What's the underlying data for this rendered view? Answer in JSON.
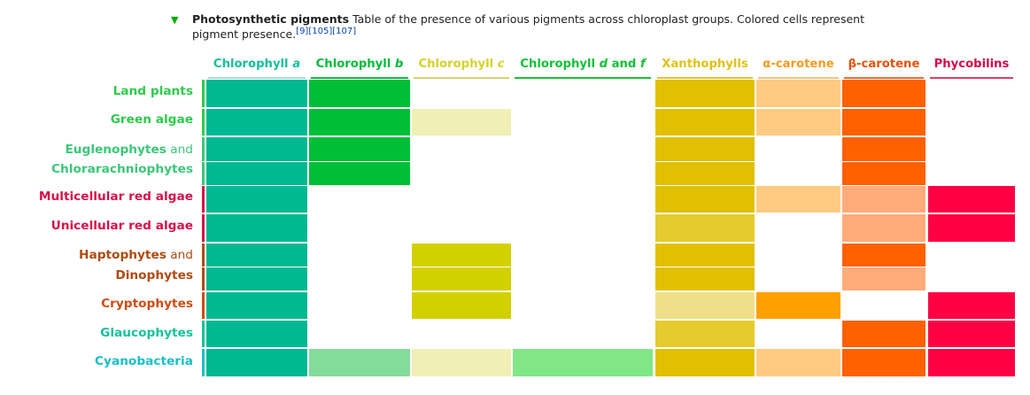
{
  "caption": {
    "toggle_icon": "triangle-down-icon",
    "title": "Photosynthetic pigments",
    "text_line1": "Table of the presence of various pigments across chloroplast groups. Colored cells represent",
    "text_line2": "pigment presence.",
    "refs": "[9][105][107]"
  },
  "columns": [
    {
      "id": "chla",
      "label": "Chlorophyll ",
      "italic": "a",
      "suffix": "",
      "color": "#14bf98",
      "underline": "#a6dbdb"
    },
    {
      "id": "chlb",
      "label": "Chlorophyll ",
      "italic": "b",
      "suffix": "",
      "color": "#05bb3a",
      "underline": "#14b847"
    },
    {
      "id": "chlc",
      "label": "Chlorophyll ",
      "italic": "c",
      "suffix": "",
      "color": "#d6d22a",
      "underline": "#d8d36c"
    },
    {
      "id": "chldf",
      "label": "Chlorophyll ",
      "italic": "d",
      "suffix": " and ",
      "italic2": "f",
      "color": "#12c137",
      "underline": "#1fc035"
    },
    {
      "id": "xan",
      "label": "Xanthophylls",
      "italic": "",
      "suffix": "",
      "color": "#e0c214",
      "underline": "#e5c22b"
    },
    {
      "id": "acar",
      "label": "α-carotene",
      "italic": "",
      "suffix": "",
      "color": "#f39b1f",
      "underline": "#f6c27f"
    },
    {
      "id": "bcar",
      "label": "β-carotene",
      "italic": "",
      "suffix": "",
      "color": "#e6520a",
      "underline": "#f06b30"
    },
    {
      "id": "phy",
      "label": "Phycobilins",
      "italic": "",
      "suffix": "",
      "color": "#d10d4a",
      "underline": "#de3e6a"
    }
  ],
  "rows": [
    {
      "id": "land-plants",
      "parts": [
        {
          "t": "Land plants",
          "b": true
        }
      ],
      "color": "#2fcb4a",
      "bar": "#2fcb4a"
    },
    {
      "id": "green-algae",
      "parts": [
        {
          "t": "Green algae",
          "b": true
        }
      ],
      "color": "#2fcb4a",
      "bar": "#2fcb4a"
    },
    {
      "id": "euglenophytes",
      "parts": [
        {
          "t": "Euglenophytes",
          "b": true
        },
        {
          "t": " and",
          "b": false
        }
      ],
      "color": "#3cc77a",
      "bar": "#3cc77a"
    },
    {
      "id": "chlorarachniophytes",
      "parts": [
        {
          "t": "Chlorarachniophytes",
          "b": true
        }
      ],
      "color": "#3cc77a",
      "bar": "#3cc77a"
    },
    {
      "id": "multicellular-red-algae",
      "parts": [
        {
          "t": "Multicellular red algae",
          "b": true
        }
      ],
      "color": "#d5114a",
      "bar": "#d5114a"
    },
    {
      "id": "unicellular-red-algae",
      "parts": [
        {
          "t": "Unicellular red algae",
          "b": true
        }
      ],
      "color": "#d5114a",
      "bar": "#d5114a"
    },
    {
      "id": "haptophytes",
      "parts": [
        {
          "t": "Haptophytes",
          "b": true
        },
        {
          "t": " and",
          "b": false
        }
      ],
      "color": "#b04a10",
      "bar": "#b04a10"
    },
    {
      "id": "dinophytes",
      "parts": [
        {
          "t": "Dinophytes",
          "b": true
        }
      ],
      "color": "#b04a10",
      "bar": "#b04a10"
    },
    {
      "id": "cryptophytes",
      "parts": [
        {
          "t": "Cryptophytes",
          "b": true
        }
      ],
      "color": "#cf4b10",
      "bar": "#cf4b10"
    },
    {
      "id": "glaucophytes",
      "parts": [
        {
          "t": "Glaucophytes",
          "b": true
        }
      ],
      "color": "#17c29a",
      "bar": "#17c29a"
    },
    {
      "id": "cyanobacteria",
      "parts": [
        {
          "t": "Cyanobacteria",
          "b": true
        }
      ],
      "color": "#19c0c9",
      "bar": "#19c0c9"
    }
  ],
  "presence": {
    "colors": {
      "chla": "#00b892",
      "chlb": "#00bf37",
      "chlb_light": "#84dc9a",
      "chlc": "#d3d000",
      "chlc_light": "#f0efb6",
      "chldf": "#81e786",
      "xan": "#e0c000",
      "xan_mid": "#e5cb2e",
      "xan_light": "#efdf88",
      "acar": "#ffcb82",
      "acar_dark": "#ffa000",
      "bcar": "#ff6000",
      "bcar_light": "#ffab7a",
      "phy": "#ff0044"
    },
    "matrix": [
      [
        "chla",
        "chlb",
        "",
        "",
        "xan",
        "acar",
        "bcar",
        ""
      ],
      [
        "chla",
        "chlb",
        "chlc_light",
        "",
        "xan",
        "acar",
        "bcar",
        ""
      ],
      [
        "chla",
        "chlb",
        "",
        "",
        "xan",
        "",
        "bcar",
        ""
      ],
      [
        "chla",
        "chlb",
        "",
        "",
        "xan",
        "",
        "bcar",
        ""
      ],
      [
        "chla",
        "",
        "",
        "",
        "xan",
        "acar",
        "bcar_light",
        "phy"
      ],
      [
        "chla",
        "",
        "",
        "",
        "xan_mid",
        "",
        "bcar_light",
        "phy"
      ],
      [
        "chla",
        "",
        "chlc",
        "",
        "xan",
        "",
        "bcar",
        ""
      ],
      [
        "chla",
        "",
        "chlc",
        "",
        "xan",
        "",
        "bcar_light",
        ""
      ],
      [
        "chla",
        "",
        "chlc",
        "",
        "xan_light",
        "acar_dark",
        "",
        "phy"
      ],
      [
        "chla",
        "",
        "",
        "",
        "xan_mid",
        "",
        "bcar",
        "phy"
      ],
      [
        "chla",
        "chlb_light",
        "chlc_light",
        "chldf",
        "xan",
        "acar",
        "bcar",
        "phy"
      ]
    ]
  }
}
